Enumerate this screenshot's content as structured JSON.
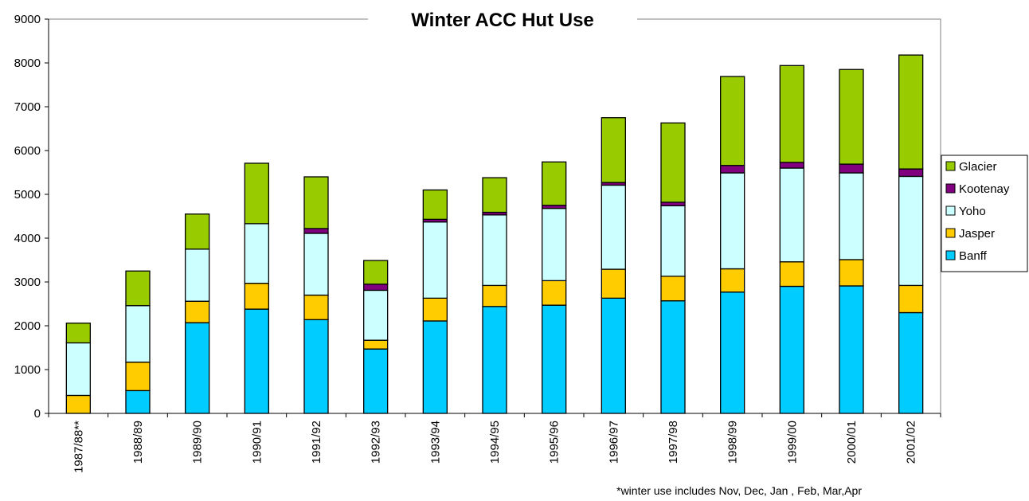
{
  "chart_data": {
    "type": "bar",
    "stacked": true,
    "title": "Winter ACC Hut Use",
    "xlabel": "",
    "ylabel": "",
    "ylim": [
      0,
      9000
    ],
    "yticks": [
      0,
      1000,
      2000,
      3000,
      4000,
      5000,
      6000,
      7000,
      8000,
      9000
    ],
    "grid": false,
    "legend_position": "right",
    "categories": [
      "1987/88**",
      "1988/89",
      "1989/90",
      "1990/91",
      "1991/92",
      "1992/93",
      "1993/94",
      "1994/95",
      "1995/96",
      "1996/97",
      "1997/98",
      "1998/99",
      "1999/00",
      "2000/01",
      "2001/02"
    ],
    "series": [
      {
        "name": "Banff",
        "color": "#00ccff",
        "values": [
          0,
          520,
          2070,
          2380,
          2140,
          1470,
          2110,
          2440,
          2470,
          2630,
          2570,
          2770,
          2900,
          2910,
          2300
        ]
      },
      {
        "name": "Jasper",
        "color": "#ffcc00",
        "values": [
          410,
          650,
          490,
          590,
          560,
          200,
          520,
          480,
          560,
          660,
          560,
          530,
          560,
          600,
          620
        ]
      },
      {
        "name": "Yoho",
        "color": "#ccffff",
        "values": [
          1200,
          1290,
          1190,
          1360,
          1410,
          1140,
          1740,
          1610,
          1650,
          1920,
          1610,
          2190,
          2140,
          1980,
          2490
        ]
      },
      {
        "name": "Kootenay",
        "color": "#800080",
        "values": [
          0,
          0,
          0,
          0,
          110,
          140,
          60,
          60,
          70,
          60,
          80,
          170,
          130,
          200,
          170
        ]
      },
      {
        "name": "Glacier",
        "color": "#99cc00",
        "values": [
          450,
          790,
          800,
          1380,
          1180,
          540,
          670,
          790,
          990,
          1480,
          1810,
          2030,
          2210,
          2160,
          2600
        ]
      }
    ],
    "annotation": "*winter use includes Nov, Dec, Jan , Feb, Mar,Apr"
  }
}
